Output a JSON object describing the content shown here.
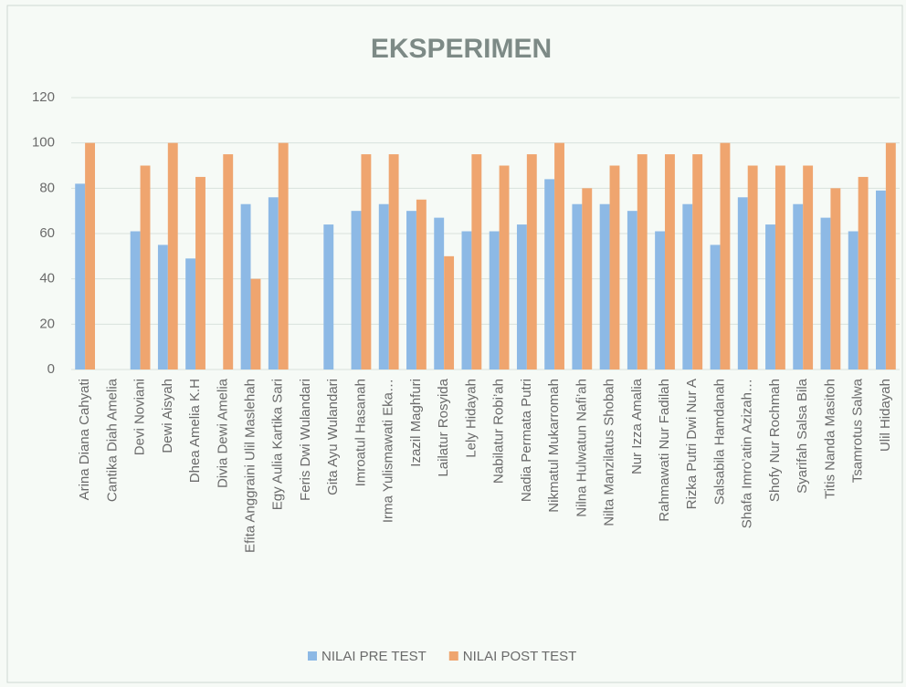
{
  "chart_data": {
    "type": "bar",
    "title": "EKSPERIMEN",
    "categories": [
      "Arina Diana Cahyati",
      "Cantika Diah Amelia",
      "Devi Noviani",
      "Dewi Aisyah",
      "Dhea Amelia K.H",
      "Divia Dewi Amelia",
      "Efita Anggraini Ulil Maslehah",
      "Egy Aulia Kartika Sari",
      "Feris Dwi Wulandari",
      "Gita Ayu Wulandari",
      "Imroatul Hasanah",
      "Irma Yulismawati Eka…",
      "Izazil Maghfuri",
      "Lailatur Rosyida",
      "Lely Hidayah",
      "Nabilatur Robi’ah",
      "Nadia Permata Putri",
      "Nikmatul Mukarromah",
      "Nilna Hulwatun Nafi’ah",
      "Nilta Manzilatus Shobah",
      "Nur Izza Amalia",
      "Rahmawati Nur Fadilah",
      "Rizka Putri Dwi Nur A",
      "Salsabila Hamdanah",
      "Shafa Imro’atin Azizah…",
      "Shofy Nur Rochmah",
      "Syarifah Salsa Bila",
      "Titis Nanda Masitoh",
      "Tsamrotus Salwa",
      "Ulil Hidayah"
    ],
    "series": [
      {
        "name": "NILAI PRE TEST",
        "color": "#8db9e5",
        "values": [
          82,
          null,
          61,
          55,
          49,
          null,
          73,
          76,
          null,
          64,
          70,
          73,
          70,
          67,
          61,
          61,
          64,
          84,
          73,
          73,
          70,
          61,
          73,
          55,
          76,
          64,
          73,
          67,
          61,
          79
        ]
      },
      {
        "name": "NILAI POST TEST",
        "color": "#efa56f",
        "values": [
          100,
          null,
          90,
          100,
          85,
          95,
          40,
          100,
          null,
          null,
          95,
          95,
          75,
          50,
          95,
          90,
          95,
          100,
          80,
          90,
          95,
          95,
          95,
          100,
          90,
          90,
          90,
          80,
          85,
          100
        ]
      }
    ],
    "ylim": [
      0,
      120
    ],
    "yticks": [
      0,
      20,
      40,
      60,
      80,
      100,
      120
    ],
    "grid": true,
    "legend": "bottom"
  }
}
